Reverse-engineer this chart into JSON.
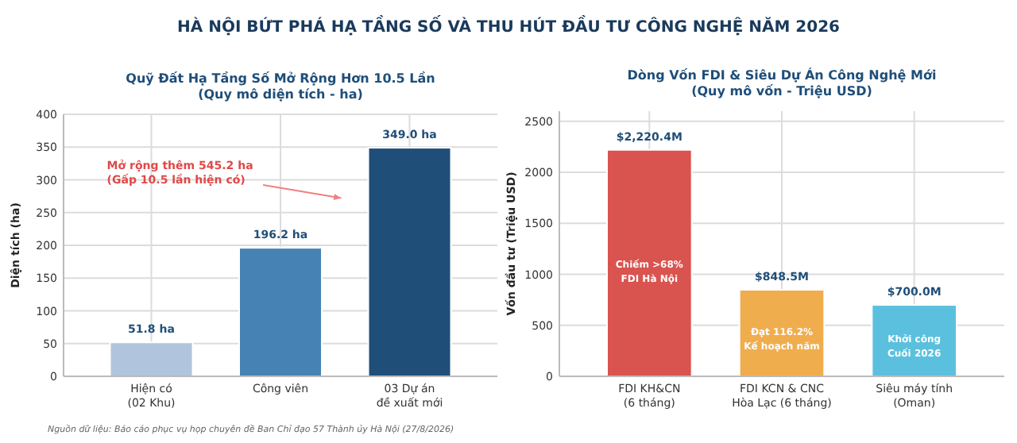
{
  "chart_data": [
    {
      "type": "bar",
      "title": "HÀ NỘI BỨT PHÁ HẠ TẦNG SỐ VÀ THU HÚT ĐẦU TƯ CÔNG NGHỆ NĂM 2026",
      "subtitle": "Quỹ Đất Hạ Tầng Số Mở Rộng Hơn 10.5 Lần\n(Quy mô diện tích - ha)",
      "ylabel": "Diện tích (ha)",
      "categories": [
        "Hiện có\n(02 Khu)",
        "Công viên",
        "03 Dự án\nđề xuất mới"
      ],
      "values": [
        51.8,
        196.2,
        349.0
      ],
      "colors": [
        "#b0c4de",
        "#4682b4",
        "#1f4e79"
      ],
      "value_labels": [
        "51.8 ha",
        "196.2 ha",
        "349.0 ha"
      ],
      "ylim": [
        0,
        400
      ],
      "yticks": [
        0,
        50,
        100,
        150,
        200,
        250,
        300,
        350,
        400
      ],
      "grid": true,
      "annotations": [
        "Mở rộng thêm 545.2 ha\n(Gấp 10.5 lần hiện có)",
        "Nguồn dữ liệu: Báo cáo phục vụ họp chuyên đề Ban Chỉ đạo 57 Thành ủy Hà Nội (27/8/2026)"
      ]
    },
    {
      "type": "bar",
      "subtitle": "Dòng Vốn FDI & Siêu Dự Án Công Nghệ Mới\n(Quy mô vốn - Triệu USD)",
      "ylabel": "Vốn đầu tư (Triệu USD)",
      "categories": [
        "FDI KH&CN\n(6 tháng)",
        "FDI KCN & CNC\nHòa Lạc (6 tháng)",
        "Siêu máy tính\n(Oman)"
      ],
      "values": [
        2220.4,
        848.5,
        700.0
      ],
      "colors": [
        "#d9534f",
        "#f0ad4e",
        "#5bc0de"
      ],
      "value_labels": [
        "$2,220.4M",
        "$848.5M",
        "$700.0M"
      ],
      "ylim": [
        0,
        2600
      ],
      "yticks": [
        0,
        500,
        1000,
        1500,
        2000,
        2500
      ],
      "grid": true,
      "annotations": [
        "Chiếm >68%\nFDI Hà Nội",
        "Đạt 116.2%\nKế hoạch năm",
        "Khởi công\nCuối 2026"
      ]
    }
  ]
}
